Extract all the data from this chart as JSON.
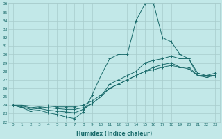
{
  "xlabel": "Humidex (Indice chaleur)",
  "ylabel": "",
  "bg_color": "#c2e8e8",
  "grid_color": "#a8cccc",
  "line_color": "#1a6b6b",
  "xlim": [
    -0.5,
    23.5
  ],
  "ylim": [
    22,
    36
  ],
  "xticks": [
    0,
    1,
    2,
    3,
    4,
    5,
    6,
    7,
    8,
    9,
    10,
    11,
    12,
    13,
    14,
    15,
    16,
    17,
    18,
    19,
    20,
    21,
    22,
    23
  ],
  "yticks": [
    22,
    23,
    24,
    25,
    26,
    27,
    28,
    29,
    30,
    31,
    32,
    33,
    34,
    35,
    36
  ],
  "series": [
    [
      24.0,
      23.7,
      23.3,
      23.4,
      23.1,
      22.9,
      22.6,
      22.4,
      23.2,
      25.2,
      27.5,
      29.5,
      30.0,
      30.0,
      34.0,
      36.0,
      36.0,
      32.0,
      31.5,
      30.0,
      29.5,
      27.5,
      27.5,
      27.5
    ],
    [
      24.0,
      23.8,
      23.5,
      23.6,
      23.4,
      23.3,
      23.2,
      23.1,
      23.5,
      24.2,
      25.0,
      26.5,
      27.0,
      27.5,
      28.0,
      29.0,
      29.3,
      29.5,
      29.8,
      29.5,
      29.5,
      27.8,
      27.5,
      27.8
    ],
    [
      24.0,
      23.9,
      23.7,
      23.8,
      23.7,
      23.6,
      23.5,
      23.5,
      23.7,
      24.2,
      25.0,
      26.0,
      26.5,
      27.0,
      27.5,
      28.0,
      28.5,
      28.8,
      29.0,
      28.5,
      28.5,
      27.5,
      27.5,
      27.5
    ],
    [
      24.0,
      24.0,
      23.9,
      23.9,
      23.9,
      23.8,
      23.8,
      23.8,
      24.0,
      24.5,
      25.2,
      26.0,
      26.5,
      27.0,
      27.5,
      28.0,
      28.2,
      28.5,
      28.7,
      28.5,
      28.3,
      27.5,
      27.3,
      27.5
    ]
  ]
}
